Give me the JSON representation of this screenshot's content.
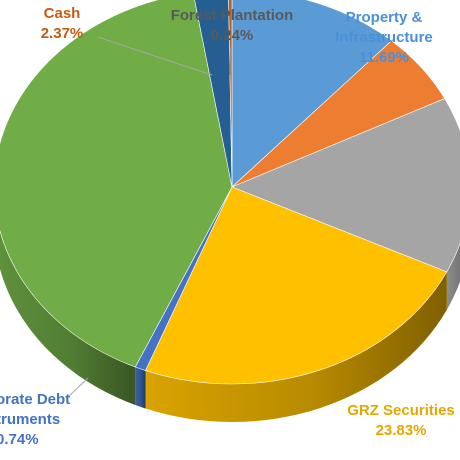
{
  "chart_data": {
    "type": "pie",
    "slices": [
      {
        "name": "Property & Infrastructure",
        "value": 11.69,
        "label_name": "Property &\nInfrastructure",
        "label_value": "11.69%",
        "color": "#5B9BD5",
        "label_color": "#4A90D9"
      },
      {
        "name": "",
        "value": 5.9,
        "color": "#ED7D31"
      },
      {
        "name": "",
        "value": 14.5,
        "color": "#A5A5A5"
      },
      {
        "name": "GRZ Securities",
        "value": 23.83,
        "label_name": "GRZ Securities",
        "label_value": "23.83%",
        "color": "#FFC000",
        "label_color": "#E3A800"
      },
      {
        "name": "Corporate Debt Instruments",
        "value": 0.74,
        "label_name": "orate Debt\ntruments",
        "label_value": "0.74%",
        "color": "#4472C4",
        "label_color": "#4472C4"
      },
      {
        "name": "",
        "value": 40.73,
        "color": "#70AD47"
      },
      {
        "name": "Cash",
        "value": 2.37,
        "label_name": "Cash",
        "label_value": "2.37%",
        "color": "#255E91",
        "label_color": "#C55A11"
      },
      {
        "name": "Forest Plantation",
        "value": 0.24,
        "label_name": "Forest Plantation",
        "label_value": "0.24%",
        "color": "#C55A11",
        "label_color": "#595959"
      }
    ]
  }
}
